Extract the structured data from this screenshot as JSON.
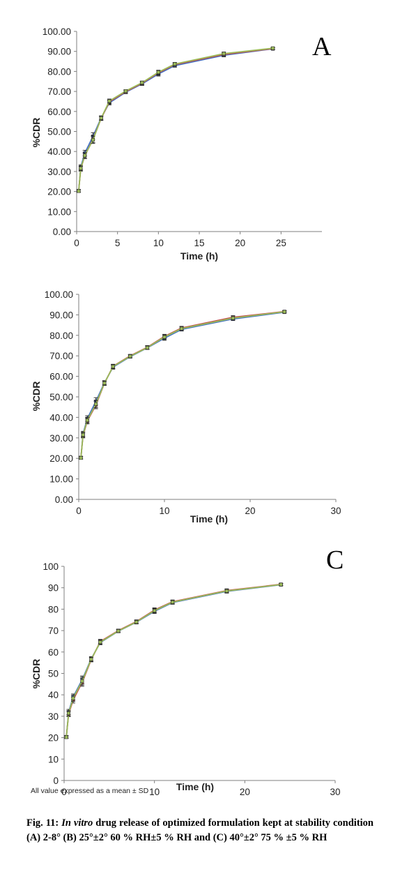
{
  "chart_data": [
    {
      "type": "line",
      "panel_label": "A",
      "xlabel": "Time (h)",
      "ylabel": "%CDR",
      "xlim": [
        0,
        30
      ],
      "ylim": [
        0,
        100
      ],
      "xticks": [
        "0",
        "5",
        "10",
        "15",
        "20",
        "25"
      ],
      "yticks": [
        "0.00",
        "10.00",
        "20.00",
        "30.00",
        "40.00",
        "50.00",
        "60.00",
        "70.00",
        "80.00",
        "90.00",
        "100.00"
      ],
      "grid": false,
      "error_bars": true,
      "x": [
        0.25,
        0.5,
        1,
        2,
        3,
        4,
        6,
        8,
        10,
        12,
        18,
        24
      ],
      "series": [
        {
          "color": "#4472C4",
          "values": [
            20.3,
            32.2,
            39.2,
            47.6,
            56.8,
            64.3,
            69.6,
            73.8,
            78.7,
            82.9,
            88.1,
            91.3
          ],
          "errors": [
            0.6,
            1.2,
            1.4,
            1.8,
            1.0,
            1.0,
            0.7,
            0.8,
            1.0,
            0.8,
            0.8,
            0.5
          ]
        },
        {
          "color": "#C0504D",
          "values": [
            20.4,
            31.4,
            37.8,
            46.2,
            56.5,
            64.8,
            69.9,
            74.1,
            79.3,
            83.4,
            88.5,
            91.4
          ],
          "errors": [
            0.6,
            1.2,
            1.4,
            1.8,
            1.0,
            1.0,
            0.7,
            0.8,
            1.0,
            0.8,
            0.8,
            0.5
          ]
        },
        {
          "color": "#9BBB59",
          "values": [
            20.2,
            31.6,
            38.0,
            45.8,
            56.7,
            65.2,
            70.2,
            74.4,
            79.6,
            83.7,
            88.9,
            91.6
          ],
          "errors": [
            0.6,
            1.2,
            1.4,
            1.8,
            1.0,
            1.0,
            0.7,
            0.8,
            1.0,
            0.8,
            0.8,
            0.5
          ]
        }
      ]
    },
    {
      "type": "line",
      "panel_label": "",
      "xlabel": "Time (h)",
      "ylabel": "%CDR",
      "xlim": [
        0,
        30
      ],
      "ylim": [
        0,
        100
      ],
      "xticks": [
        "0",
        "10",
        "20",
        "30"
      ],
      "yticks": [
        "0.00",
        "10.00",
        "20.00",
        "30.00",
        "40.00",
        "50.00",
        "60.00",
        "70.00",
        "80.00",
        "90.00",
        "100.00"
      ],
      "grid": false,
      "error_bars": true,
      "x": [
        0.25,
        0.5,
        1,
        2,
        3,
        4,
        6,
        8,
        10,
        12,
        18,
        24
      ],
      "series": [
        {
          "color": "#4472C4",
          "values": [
            20.3,
            32.0,
            39.4,
            47.8,
            56.9,
            64.5,
            69.6,
            73.9,
            78.6,
            82.9,
            88.0,
            91.3
          ],
          "errors": [
            0.6,
            1.2,
            1.4,
            1.8,
            1.0,
            1.0,
            0.7,
            0.8,
            1.0,
            0.8,
            0.8,
            0.5
          ]
        },
        {
          "color": "#C0504D",
          "values": [
            20.4,
            31.2,
            38.2,
            46.0,
            56.6,
            64.9,
            70.0,
            74.2,
            79.5,
            83.6,
            88.8,
            91.6
          ],
          "errors": [
            0.6,
            1.2,
            1.4,
            1.8,
            1.0,
            1.0,
            0.7,
            0.8,
            1.0,
            0.8,
            0.8,
            0.5
          ]
        },
        {
          "color": "#9BBB59",
          "values": [
            20.2,
            31.5,
            38.6,
            46.5,
            56.7,
            64.8,
            69.8,
            74.0,
            79.2,
            83.3,
            88.4,
            91.5
          ],
          "errors": [
            0.6,
            1.2,
            1.4,
            1.8,
            1.0,
            1.0,
            0.7,
            0.8,
            1.0,
            0.8,
            0.8,
            0.5
          ]
        }
      ]
    },
    {
      "type": "line",
      "panel_label": "C",
      "xlabel": "Time (h)",
      "ylabel": "%CDR",
      "xlim": [
        0,
        30
      ],
      "ylim": [
        0,
        100
      ],
      "xticks": [
        "0",
        "10",
        "20",
        "30"
      ],
      "yticks": [
        "0",
        "10",
        "20",
        "30",
        "40",
        "50",
        "60",
        "70",
        "80",
        "90",
        "100"
      ],
      "grid": false,
      "error_bars": true,
      "x": [
        0.25,
        0.5,
        1,
        2,
        3,
        4,
        6,
        8,
        10,
        12,
        18,
        24
      ],
      "series": [
        {
          "color": "#4472C4",
          "values": [
            20.3,
            32.0,
            39.0,
            47.0,
            56.8,
            64.4,
            69.7,
            73.9,
            79.0,
            83.1,
            88.3,
            91.4
          ],
          "errors": [
            0.6,
            1.2,
            1.4,
            1.8,
            1.0,
            1.0,
            0.7,
            0.8,
            1.0,
            0.8,
            0.8,
            0.5
          ]
        },
        {
          "color": "#C0504D",
          "values": [
            20.4,
            31.0,
            37.6,
            45.8,
            56.4,
            64.9,
            70.0,
            74.2,
            79.6,
            83.5,
            88.7,
            91.6
          ],
          "errors": [
            0.6,
            1.2,
            1.4,
            1.8,
            1.0,
            1.0,
            0.7,
            0.8,
            1.0,
            0.8,
            0.8,
            0.5
          ]
        },
        {
          "color": "#9BBB59",
          "values": [
            20.2,
            31.4,
            38.4,
            46.4,
            56.6,
            64.6,
            69.8,
            74.0,
            79.3,
            83.3,
            88.5,
            91.5
          ],
          "errors": [
            0.6,
            1.2,
            1.4,
            1.8,
            1.0,
            1.0,
            0.7,
            0.8,
            1.0,
            0.8,
            0.8,
            0.5
          ]
        }
      ]
    }
  ],
  "footnote": "All value expressed as a mean ± SD",
  "caption": {
    "prefix": "Fig. 11: ",
    "italic": "In vitro",
    "rest": " drug release of optimized formulation kept at stability condition (A) 2-8° (B) 25°±2° 60 % RH±5 % RH and (C) 40°±2° 75 % ±5 % RH"
  }
}
